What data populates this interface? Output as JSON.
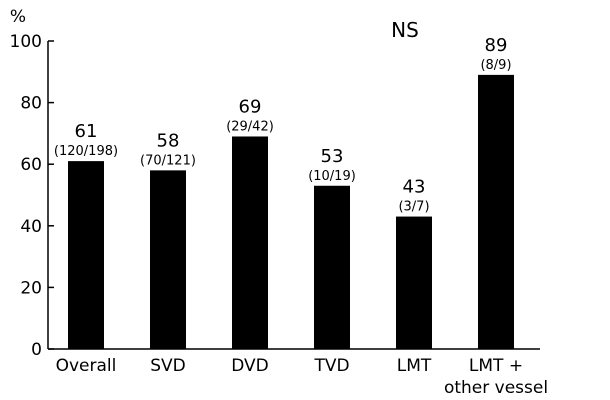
{
  "chart_data": {
    "type": "bar",
    "ylabel": "%",
    "ylim": [
      0,
      100
    ],
    "yticks": [
      0,
      20,
      40,
      60,
      80,
      100
    ],
    "annotation": "NS",
    "grid": false,
    "bar_color": "#000000",
    "categories": [
      [
        "Overall"
      ],
      [
        "SVD"
      ],
      [
        "DVD"
      ],
      [
        "TVD"
      ],
      [
        "LMT"
      ],
      [
        "LMT +",
        "other vessel"
      ]
    ],
    "values": [
      61,
      58,
      69,
      53,
      43,
      89
    ],
    "value_labels": [
      "61",
      "58",
      "69",
      "53",
      "43",
      "89"
    ],
    "counts": [
      "(120/198)",
      "(70/121)",
      "(29/42)",
      "(10/19)",
      "(3/7)",
      "(8/9)"
    ]
  }
}
